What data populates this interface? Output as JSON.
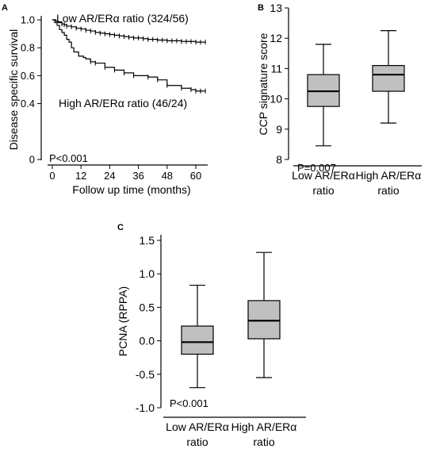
{
  "chart_data": [
    {
      "panel": "A",
      "type": "line",
      "subtype": "kaplan-meier",
      "ylabel": "Disease specific survival",
      "xlabel": "Follow up time (months)",
      "xlim": [
        0,
        65
      ],
      "ylim": [
        0,
        1.0
      ],
      "xticks": [
        "0",
        "12",
        "24",
        "36",
        "48",
        "60"
      ],
      "yticks": [
        "0",
        "0.4",
        "0.6",
        "0.8",
        "1.0"
      ],
      "ytick_values": [
        0,
        0.4,
        0.6,
        0.8,
        1.0
      ],
      "pvalue": "P<0.001",
      "series": [
        {
          "name": "Low AR/ERα ratio (324/56)",
          "color": "#000000",
          "x": [
            0,
            1.5,
            2.5,
            4,
            5,
            6,
            8,
            10,
            12,
            14,
            16,
            18,
            20,
            22,
            24,
            26,
            28,
            30,
            32,
            34,
            36,
            38,
            40,
            42,
            44,
            46,
            48,
            50,
            52,
            54,
            56,
            58,
            60,
            62,
            64
          ],
          "y": [
            1.0,
            0.99,
            0.98,
            0.97,
            0.965,
            0.955,
            0.95,
            0.94,
            0.935,
            0.925,
            0.92,
            0.91,
            0.905,
            0.9,
            0.895,
            0.89,
            0.885,
            0.88,
            0.875,
            0.87,
            0.87,
            0.865,
            0.86,
            0.86,
            0.855,
            0.855,
            0.85,
            0.85,
            0.85,
            0.845,
            0.845,
            0.845,
            0.84,
            0.84,
            0.84
          ]
        },
        {
          "name": "High AR/ERα ratio (46/24)",
          "color": "#000000",
          "x": [
            0,
            1,
            2,
            3,
            4,
            5,
            6,
            7,
            8,
            9,
            11,
            13,
            14,
            16,
            18,
            22,
            26,
            30,
            34,
            40,
            44,
            48,
            54,
            58,
            60,
            62,
            64
          ],
          "y": [
            1.0,
            0.98,
            0.96,
            0.93,
            0.91,
            0.89,
            0.86,
            0.84,
            0.8,
            0.77,
            0.74,
            0.73,
            0.72,
            0.7,
            0.69,
            0.66,
            0.64,
            0.62,
            0.6,
            0.59,
            0.57,
            0.53,
            0.51,
            0.5,
            0.49,
            0.49,
            0.49
          ]
        }
      ]
    },
    {
      "panel": "B",
      "type": "box",
      "ylabel": "CCP signature score",
      "ylim": [
        8,
        13
      ],
      "yticks": [
        "8",
        "9",
        "10",
        "11",
        "12",
        "13"
      ],
      "ytick_values": [
        8,
        9,
        10,
        11,
        12,
        13
      ],
      "categories": [
        "Low AR/ERα ratio",
        "High AR/ERα ratio"
      ],
      "category_lines": [
        [
          "Low AR/ERα",
          "ratio"
        ],
        [
          "High AR/ERα",
          "ratio"
        ]
      ],
      "pvalue": "P=0.007",
      "boxes": [
        {
          "min": 8.45,
          "q1": 9.75,
          "median": 10.25,
          "q3": 10.8,
          "max": 11.8
        },
        {
          "min": 9.2,
          "q1": 10.25,
          "median": 10.8,
          "q3": 11.1,
          "max": 12.25
        }
      ],
      "fill": "#c0c0c0"
    },
    {
      "panel": "C",
      "type": "box",
      "ylabel": "PCNA (RPPA)",
      "ylim": [
        -1.0,
        1.5
      ],
      "yticks": [
        "-1.0",
        "-0.5",
        "0.0",
        "0.5",
        "1.0",
        "1.5"
      ],
      "ytick_values": [
        -1.0,
        -0.5,
        0.0,
        0.5,
        1.0,
        1.5
      ],
      "categories": [
        "Low AR/ERα ratio",
        "High AR/ERα ratio"
      ],
      "category_lines": [
        [
          "Low AR/ERα",
          "ratio"
        ],
        [
          "High AR/ERα",
          "ratio"
        ]
      ],
      "pvalue": "P<0.001",
      "boxes": [
        {
          "min": -0.7,
          "q1": -0.2,
          "median": -0.02,
          "q3": 0.22,
          "max": 0.83
        },
        {
          "min": -0.55,
          "q1": 0.03,
          "median": 0.3,
          "q3": 0.6,
          "max": 1.32
        }
      ],
      "fill": "#c0c0c0"
    }
  ]
}
